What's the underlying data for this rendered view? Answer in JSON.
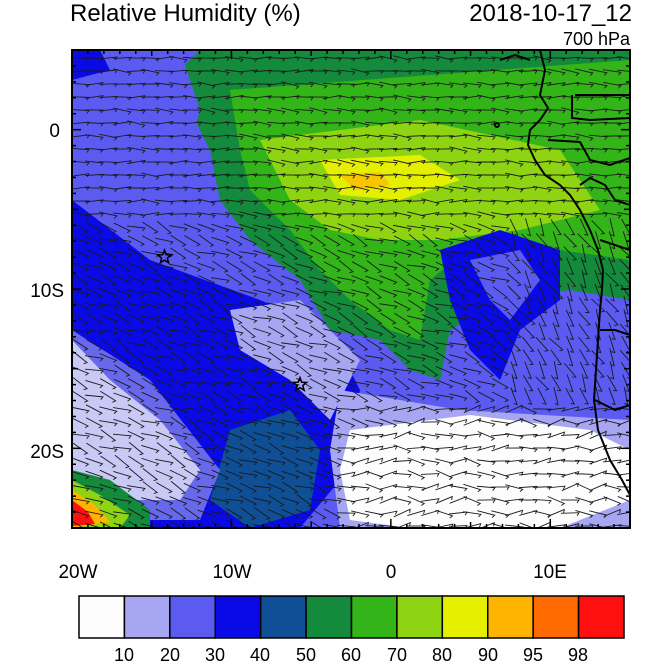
{
  "title": "Relative Humidity (%)",
  "datetime": "2018-10-17_12",
  "level": "700 hPa",
  "map": {
    "lon_range": [
      -20,
      15
    ],
    "lat_range": [
      -25,
      5
    ],
    "x_ticks": [
      "20W",
      "10W",
      "0",
      "10E"
    ],
    "y_ticks": [
      "0",
      "10S",
      "20S"
    ],
    "station_markers": [
      {
        "lon": -14.2,
        "lat": -8.0
      },
      {
        "lon": -5.7,
        "lat": -16.0
      }
    ]
  },
  "colorbar": {
    "colors": [
      "#fdfdfd",
      "#a6a6f2",
      "#5b5bf2",
      "#0a0ae6",
      "#0e4f96",
      "#138a3c",
      "#33b51a",
      "#8ed412",
      "#e4f000",
      "#ffb400",
      "#ff6a00",
      "#ff1010"
    ],
    "labels": [
      "10",
      "20",
      "30",
      "40",
      "50",
      "60",
      "70",
      "80",
      "90",
      "95",
      "98"
    ]
  }
}
